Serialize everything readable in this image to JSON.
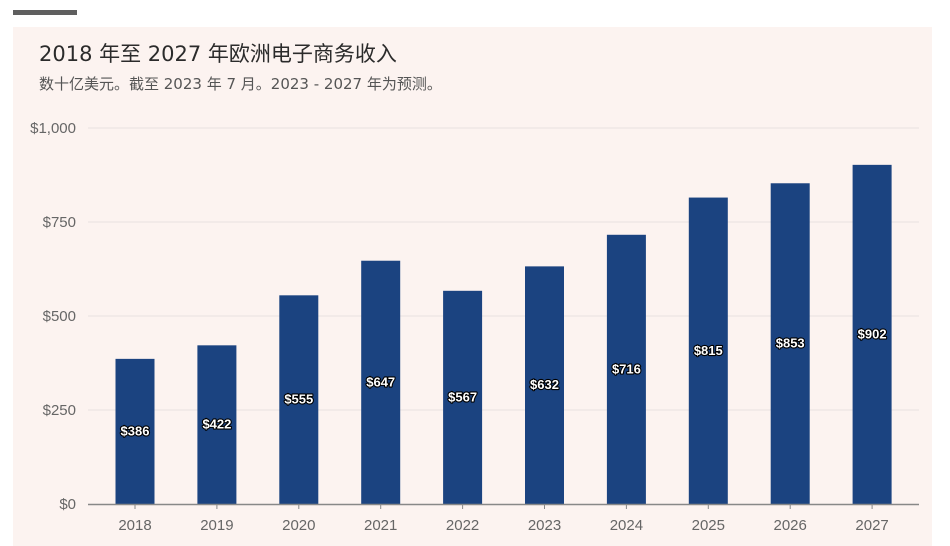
{
  "header": {
    "title": "2018 年至 2027 年欧洲电子商务收入",
    "subtitle": "数十亿美元。截至 2023 年 7 月。2023 - 2027 年为预测。"
  },
  "colors": {
    "bar": "#1b4380",
    "background": "#fcf3f0",
    "gridline": "#e9e2df",
    "axis": "#888888",
    "accent_bar": "#5f5f5f"
  },
  "chart_data": {
    "type": "bar",
    "title": "2018 年至 2027 年欧洲电子商务收入",
    "subtitle": "数十亿美元。截至 2023 年 7 月。2023 - 2027 年为预测。",
    "categories": [
      "2018",
      "2019",
      "2020",
      "2021",
      "2022",
      "2023",
      "2024",
      "2025",
      "2026",
      "2027"
    ],
    "values": [
      386,
      422,
      555,
      647,
      567,
      632,
      716,
      815,
      853,
      902
    ],
    "data_labels": [
      "$386",
      "$422",
      "$555",
      "$647",
      "$567",
      "$632",
      "$716",
      "$815",
      "$853",
      "$902"
    ],
    "y_ticks": [
      0,
      250,
      500,
      750,
      1000
    ],
    "y_tick_labels": [
      "$0",
      "$250",
      "$500",
      "$750",
      "$1,000"
    ],
    "ylim": [
      0,
      1000
    ],
    "xlabel": "",
    "ylabel": "",
    "grid": true,
    "legend": "none"
  }
}
